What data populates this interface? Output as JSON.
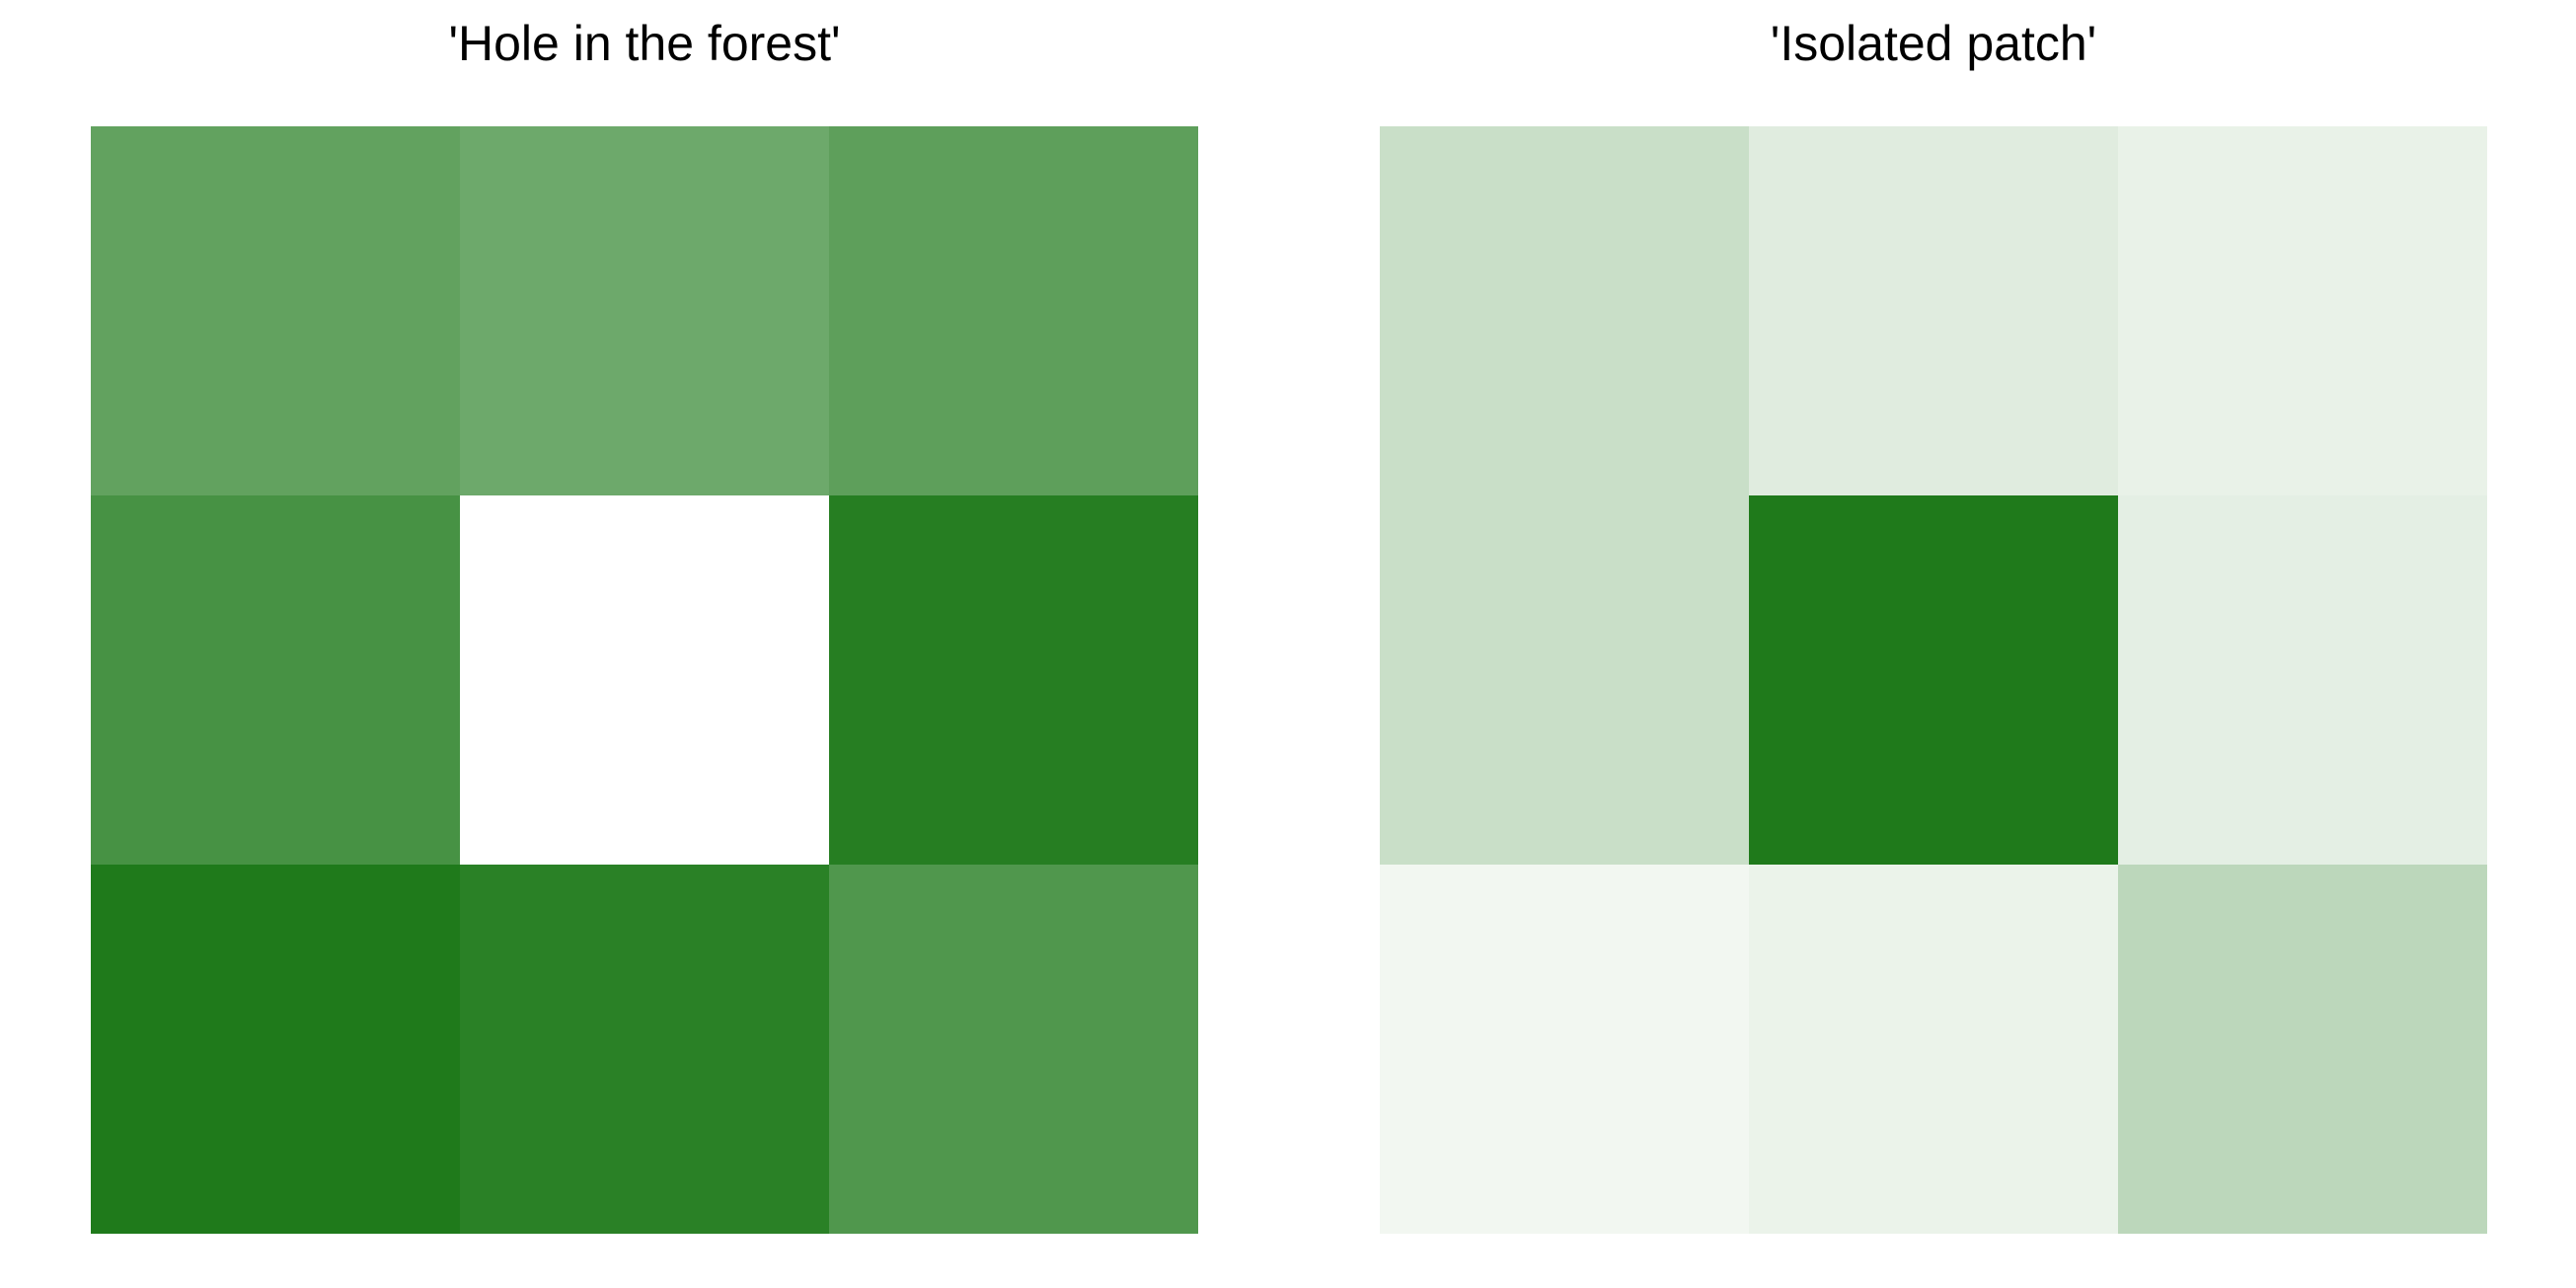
{
  "chart_data": [
    {
      "type": "heatmap",
      "title": "'Hole in the forest'",
      "rows": 3,
      "cols": 3,
      "value_range": [
        0,
        1
      ],
      "colormap": {
        "low": "#ffffff",
        "high": "#1f7a1b"
      },
      "values": [
        [
          0.7,
          0.65,
          0.72
        ],
        [
          0.82,
          0.0,
          0.97
        ],
        [
          1.0,
          0.95,
          0.78
        ]
      ],
      "grid": false
    },
    {
      "type": "heatmap",
      "title": "'Isolated patch'",
      "rows": 3,
      "cols": 3,
      "value_range": [
        0,
        1
      ],
      "colormap": {
        "low": "#ffffff",
        "high": "#1f7a1b"
      },
      "values": [
        [
          0.24,
          0.14,
          0.1
        ],
        [
          0.24,
          1.0,
          0.12
        ],
        [
          0.06,
          0.09,
          0.3
        ]
      ],
      "grid": false
    }
  ]
}
